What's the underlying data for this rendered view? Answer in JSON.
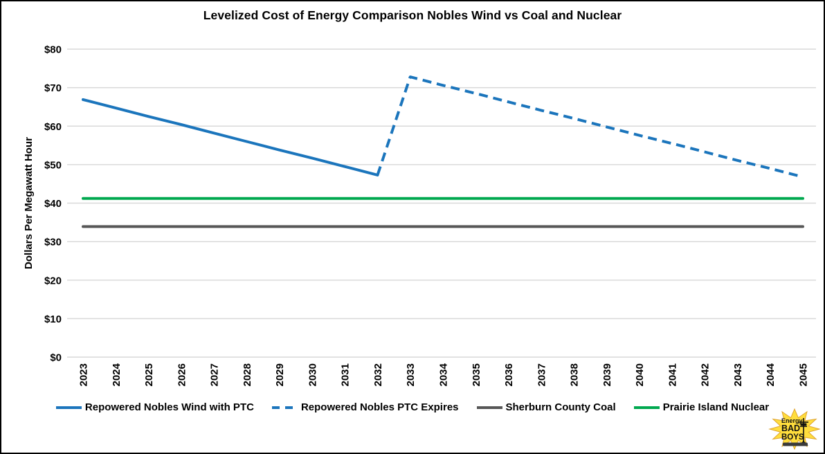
{
  "frame": {
    "title": "Levelized Cost of Energy Comparison Nobles Wind vs Coal and Nuclear"
  },
  "chart_data": {
    "type": "line",
    "title": "Levelized Cost of Energy Comparison Nobles Wind vs Coal and Nuclear",
    "xlabel": "",
    "ylabel": "Dollars Per Megawatt Hour",
    "ylim": [
      0,
      80
    ],
    "yticks": [
      0,
      10,
      20,
      30,
      40,
      50,
      60,
      70,
      80
    ],
    "ytick_labels": [
      "$0",
      "$10",
      "$20",
      "$30",
      "$40",
      "$50",
      "$60",
      "$70",
      "$80"
    ],
    "x_categories": [
      "2023",
      "2024",
      "2025",
      "2026",
      "2027",
      "2028",
      "2029",
      "2030",
      "2031",
      "2032",
      "2033",
      "2034",
      "2035",
      "2036",
      "2037",
      "2038",
      "2039",
      "2040",
      "2041",
      "2042",
      "2043",
      "2044",
      "2045"
    ],
    "grid": true,
    "grid_color": "#d9d9d9",
    "legend_position": "bottom",
    "series": [
      {
        "name": "Repowered Nobles Wind with PTC",
        "color": "#1b75bc",
        "dash": "solid",
        "x": [
          2023,
          2024,
          2025,
          2026,
          2027,
          2028,
          2029,
          2030,
          2031,
          2032
        ],
        "values": [
          66.9,
          64.7,
          62.5,
          60.4,
          58.2,
          56.0,
          53.8,
          51.7,
          49.5,
          47.3
        ]
      },
      {
        "name": "Repowered Nobles PTC Expires",
        "color": "#1b75bc",
        "dash": "dashed",
        "x": [
          2032,
          2033,
          2034,
          2035,
          2036,
          2037,
          2038,
          2039,
          2040,
          2041,
          2042,
          2043,
          2044,
          2045
        ],
        "values": [
          47.3,
          72.8,
          70.6,
          68.5,
          66.3,
          64.1,
          62.0,
          59.8,
          57.6,
          55.5,
          53.3,
          51.1,
          49.0,
          46.8
        ]
      },
      {
        "name": "Sherburn County Coal",
        "color": "#575757",
        "dash": "solid",
        "x": [
          2023,
          2024,
          2025,
          2026,
          2027,
          2028,
          2029,
          2030,
          2031,
          2032,
          2033,
          2034,
          2035,
          2036,
          2037,
          2038,
          2039,
          2040,
          2041,
          2042,
          2043,
          2044,
          2045
        ],
        "values": [
          33.9,
          33.9,
          33.9,
          33.9,
          33.9,
          33.9,
          33.9,
          33.9,
          33.9,
          33.9,
          33.9,
          33.9,
          33.9,
          33.9,
          33.9,
          33.9,
          33.9,
          33.9,
          33.9,
          33.9,
          33.9,
          33.9,
          33.9
        ]
      },
      {
        "name": "Prairie Island Nuclear",
        "color": "#00a84f",
        "dash": "solid",
        "x": [
          2023,
          2024,
          2025,
          2026,
          2027,
          2028,
          2029,
          2030,
          2031,
          2032,
          2033,
          2034,
          2035,
          2036,
          2037,
          2038,
          2039,
          2040,
          2041,
          2042,
          2043,
          2044,
          2045
        ],
        "values": [
          41.2,
          41.2,
          41.2,
          41.2,
          41.2,
          41.2,
          41.2,
          41.2,
          41.2,
          41.2,
          41.2,
          41.2,
          41.2,
          41.2,
          41.2,
          41.2,
          41.2,
          41.2,
          41.2,
          41.2,
          41.2,
          41.2,
          41.2
        ]
      }
    ]
  },
  "logo": {
    "line1": "Energy",
    "line2": "BAD",
    "line3": "BOYS",
    "star_color": "#ffde3d"
  }
}
